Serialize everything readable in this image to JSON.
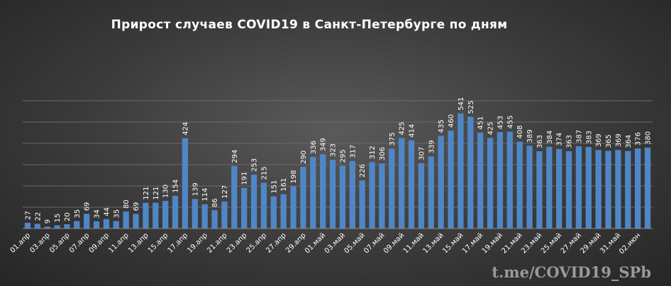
{
  "chart_data": {
    "type": "bar",
    "title": "Прирост случаев COVID19 в Санкт-Петербурге по дням",
    "xlabel": "",
    "ylabel": "",
    "ylim": [
      0,
      600
    ],
    "grid": true,
    "gridlines": [
      100,
      200,
      300,
      400,
      500,
      600
    ],
    "bar_color": "#4f86c6",
    "tick_labels": [
      "01.апр",
      "03.апр",
      "05.апр",
      "07.апр",
      "09.апр",
      "11.апр",
      "13.апр",
      "15.апр",
      "17.апр",
      "19.апр",
      "21.апр",
      "23.апр",
      "25.апр",
      "27.апр",
      "29.апр",
      "01.май",
      "03.май",
      "05.май",
      "07.май",
      "09.май",
      "11.май",
      "13.май",
      "15.май",
      "17.май",
      "19.май",
      "21.май",
      "23.май",
      "25.май",
      "27.май",
      "29.май",
      "31.май",
      "02.июн"
    ],
    "values": [
      27,
      22,
      9,
      15,
      20,
      35,
      69,
      34,
      44,
      35,
      80,
      69,
      121,
      121,
      130,
      154,
      424,
      139,
      114,
      86,
      127,
      294,
      191,
      253,
      215,
      151,
      161,
      198,
      290,
      336,
      349,
      323,
      295,
      317,
      226,
      312,
      306,
      375,
      425,
      414,
      307,
      339,
      435,
      460,
      541,
      525,
      451,
      425,
      453,
      455,
      408,
      389,
      363,
      384,
      374,
      363,
      387,
      383,
      369,
      365,
      369,
      364,
      376,
      380
    ]
  },
  "watermark": "t.me/COVID19_SPb"
}
